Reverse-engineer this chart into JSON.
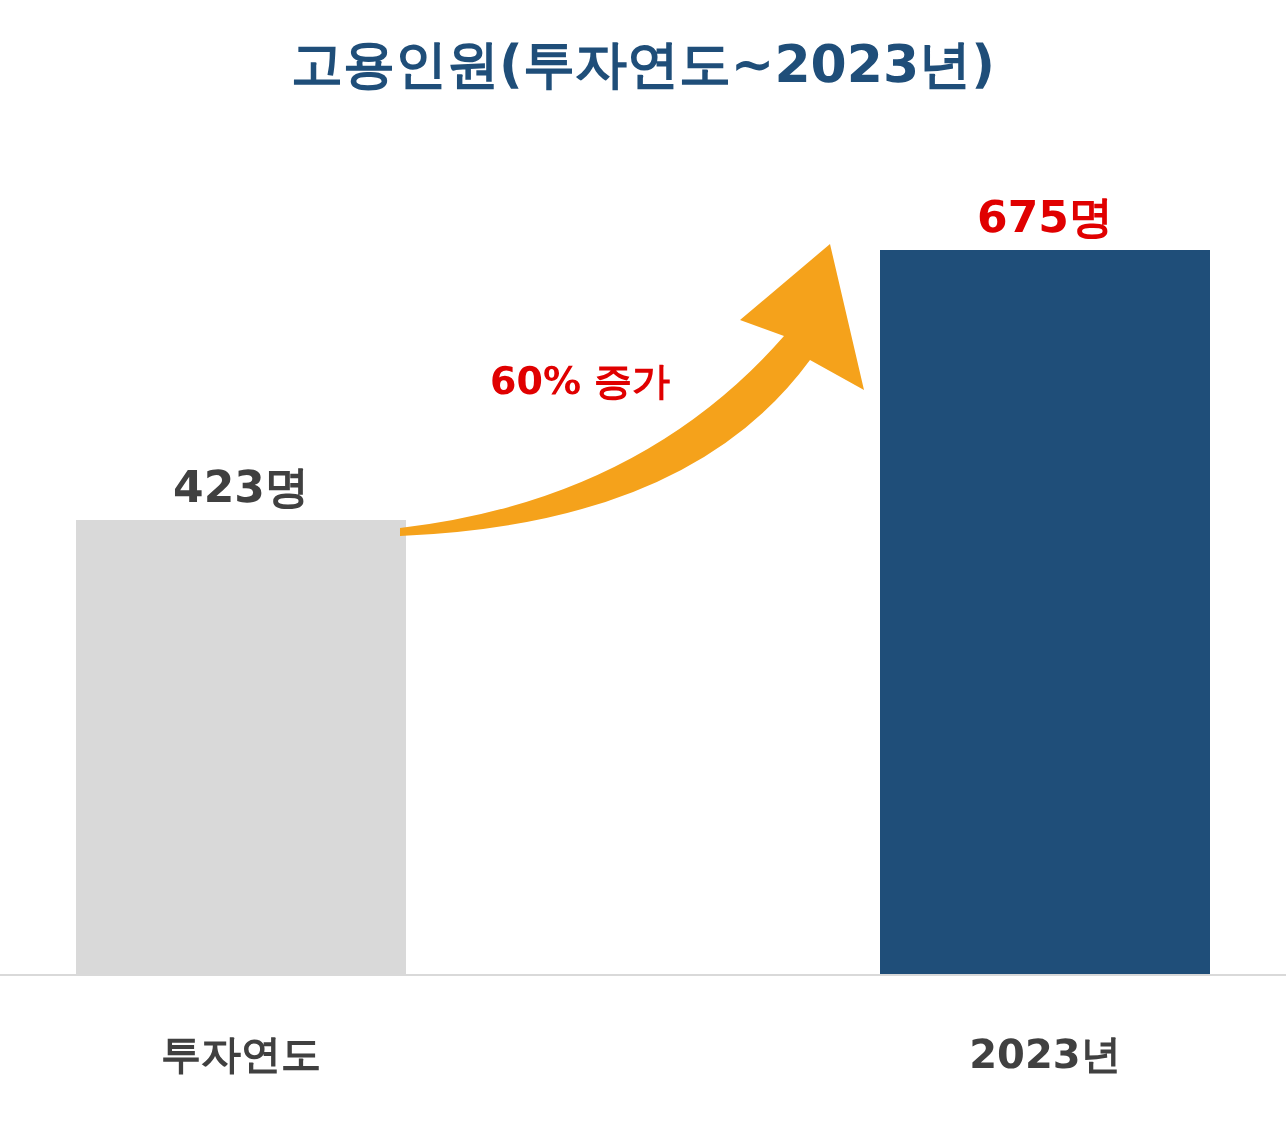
{
  "chart_data": {
    "type": "bar",
    "title": "고용인원(투자연도~2023년)",
    "categories": [
      "투자연도",
      "2023년"
    ],
    "values": [
      423,
      675
    ],
    "colors": [
      "#d9d9d9",
      "#1f4e79"
    ],
    "value_labels": [
      "423명",
      "675명"
    ],
    "annotations": [
      "60% 증가"
    ]
  }
}
